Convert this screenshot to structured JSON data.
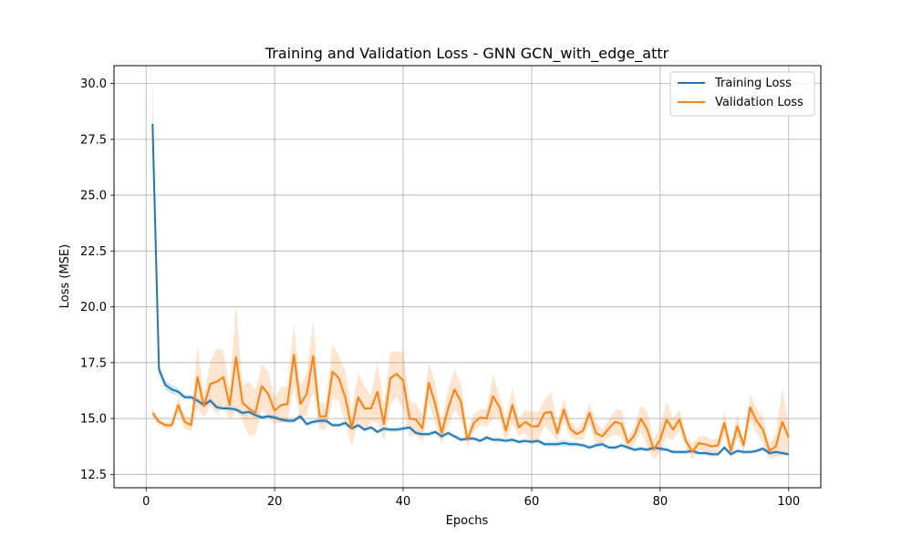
{
  "chart_data": {
    "type": "line",
    "title": "Training and Validation Loss - GNN GCN_with_edge_attr",
    "xlabel": "Epochs",
    "ylabel": "Loss (MSE)",
    "xlim": [
      -5,
      105
    ],
    "ylim": [
      11.9,
      30.8
    ],
    "xticks": [
      "0",
      "20",
      "40",
      "60",
      "80",
      "100"
    ],
    "yticks": [
      "12.5",
      "15.0",
      "17.5",
      "20.0",
      "22.5",
      "25.0",
      "27.5",
      "30.0"
    ],
    "grid": true,
    "legend_position": "top-right",
    "series": [
      {
        "name": "Training Loss",
        "color": "#1f77b4",
        "x": [
          1,
          2,
          3,
          4,
          5,
          6,
          7,
          8,
          9,
          10,
          11,
          12,
          13,
          14,
          15,
          16,
          17,
          18,
          19,
          20,
          21,
          22,
          23,
          24,
          25,
          26,
          27,
          28,
          29,
          30,
          31,
          32,
          33,
          34,
          35,
          36,
          37,
          38,
          39,
          40,
          41,
          42,
          43,
          44,
          45,
          46,
          47,
          48,
          49,
          50,
          51,
          52,
          53,
          54,
          55,
          56,
          57,
          58,
          59,
          60,
          61,
          62,
          63,
          64,
          65,
          66,
          67,
          68,
          69,
          70,
          71,
          72,
          73,
          74,
          75,
          76,
          77,
          78,
          79,
          80,
          81,
          82,
          83,
          84,
          85,
          86,
          87,
          88,
          89,
          90,
          91,
          92,
          93,
          94,
          95,
          96,
          97,
          98,
          99,
          100
        ],
        "values": [
          28.2,
          17.2,
          16.5,
          16.3,
          16.2,
          15.95,
          15.95,
          15.8,
          15.6,
          15.8,
          15.5,
          15.45,
          15.45,
          15.4,
          15.25,
          15.3,
          15.15,
          15.05,
          15.1,
          15.05,
          14.95,
          14.9,
          14.9,
          15.1,
          14.75,
          14.85,
          14.9,
          14.9,
          14.7,
          14.7,
          14.8,
          14.55,
          14.7,
          14.5,
          14.6,
          14.4,
          14.55,
          14.5,
          14.5,
          14.55,
          14.6,
          14.35,
          14.3,
          14.3,
          14.4,
          14.2,
          14.35,
          14.2,
          14.05,
          14.1,
          14.1,
          14.0,
          14.15,
          14.05,
          14.05,
          14.0,
          14.05,
          13.95,
          14.0,
          13.95,
          14.0,
          13.85,
          13.85,
          13.85,
          13.9,
          13.85,
          13.85,
          13.8,
          13.7,
          13.8,
          13.85,
          13.7,
          13.7,
          13.8,
          13.7,
          13.6,
          13.65,
          13.6,
          13.7,
          13.65,
          13.6,
          13.5,
          13.5,
          13.5,
          13.55,
          13.45,
          13.45,
          13.4,
          13.4,
          13.7,
          13.4,
          13.55,
          13.5,
          13.5,
          13.55,
          13.65,
          13.45,
          13.5,
          13.45,
          13.4
        ],
        "band": [
          2.0,
          0.3,
          0.2,
          0.2,
          0.15,
          0.12,
          0.12,
          0.12,
          0.12,
          0.12,
          0.1,
          0.1,
          0.1,
          0.1,
          0.1,
          0.1,
          0.1,
          0.1,
          0.1,
          0.1,
          0.1,
          0.1,
          0.1,
          0.12,
          0.1,
          0.1,
          0.1,
          0.1,
          0.1,
          0.1,
          0.1,
          0.1,
          0.1,
          0.1,
          0.1,
          0.1,
          0.1,
          0.1,
          0.1,
          0.1,
          0.1,
          0.1,
          0.1,
          0.1,
          0.1,
          0.1,
          0.1,
          0.1,
          0.1,
          0.1,
          0.1,
          0.1,
          0.1,
          0.1,
          0.1,
          0.1,
          0.1,
          0.1,
          0.1,
          0.1,
          0.1,
          0.1,
          0.1,
          0.12,
          0.15,
          0.12,
          0.1,
          0.1,
          0.1,
          0.1,
          0.1,
          0.1,
          0.1,
          0.1,
          0.1,
          0.1,
          0.1,
          0.1,
          0.1,
          0.1,
          0.1,
          0.1,
          0.1,
          0.1,
          0.1,
          0.1,
          0.1,
          0.1,
          0.1,
          0.1,
          0.1,
          0.1,
          0.1,
          0.1,
          0.1,
          0.1,
          0.1,
          0.1,
          0.1,
          0.1
        ]
      },
      {
        "name": "Validation Loss",
        "color": "#ff7f0e",
        "x": [
          1,
          2,
          3,
          4,
          5,
          6,
          7,
          8,
          9,
          10,
          11,
          12,
          13,
          14,
          15,
          16,
          17,
          18,
          19,
          20,
          21,
          22,
          23,
          24,
          25,
          26,
          27,
          28,
          29,
          30,
          31,
          32,
          33,
          34,
          35,
          36,
          37,
          38,
          39,
          40,
          41,
          42,
          43,
          44,
          45,
          46,
          47,
          48,
          49,
          50,
          51,
          52,
          53,
          54,
          55,
          56,
          57,
          58,
          59,
          60,
          61,
          62,
          63,
          64,
          65,
          66,
          67,
          68,
          69,
          70,
          71,
          72,
          73,
          74,
          75,
          76,
          77,
          78,
          79,
          80,
          81,
          82,
          83,
          84,
          85,
          86,
          87,
          88,
          89,
          90,
          91,
          92,
          93,
          94,
          95,
          96,
          97,
          98,
          99,
          100
        ],
        "values": [
          15.25,
          14.85,
          14.7,
          14.7,
          15.6,
          14.85,
          14.7,
          16.85,
          15.55,
          16.55,
          16.65,
          16.85,
          15.6,
          17.75,
          15.7,
          15.45,
          15.25,
          16.45,
          16.1,
          15.35,
          15.6,
          15.65,
          17.85,
          15.65,
          16.1,
          17.8,
          15.1,
          15.1,
          17.1,
          16.8,
          15.95,
          14.55,
          15.95,
          15.45,
          15.45,
          16.2,
          14.75,
          16.8,
          17.0,
          16.7,
          15.0,
          14.95,
          14.55,
          16.6,
          15.65,
          14.35,
          15.45,
          16.3,
          15.75,
          14.05,
          14.8,
          15.05,
          15.0,
          16.0,
          15.5,
          14.45,
          15.6,
          14.6,
          14.85,
          14.65,
          14.65,
          15.25,
          15.3,
          14.35,
          15.4,
          14.55,
          14.3,
          14.45,
          15.25,
          14.35,
          14.2,
          14.55,
          14.85,
          14.75,
          13.9,
          14.25,
          15.0,
          14.5,
          13.6,
          14.05,
          14.95,
          14.5,
          14.95,
          14.0,
          13.5,
          13.9,
          13.85,
          13.75,
          13.8,
          14.8,
          13.55,
          14.65,
          13.8,
          15.5,
          14.9,
          14.5,
          13.55,
          13.75,
          14.85,
          14.15
        ],
        "band": [
          0.2,
          0.15,
          0.15,
          0.15,
          0.35,
          0.3,
          0.3,
          1.4,
          0.5,
          1.0,
          1.5,
          1.2,
          0.7,
          2.4,
          0.8,
          1.2,
          1.0,
          1.0,
          1.0,
          0.6,
          0.8,
          0.8,
          1.4,
          0.8,
          0.9,
          1.6,
          0.6,
          0.6,
          1.2,
          1.0,
          1.2,
          0.8,
          1.1,
          1.0,
          0.6,
          1.4,
          0.8,
          1.2,
          1.0,
          1.3,
          0.8,
          0.7,
          0.6,
          0.9,
          0.9,
          0.5,
          0.8,
          0.9,
          0.8,
          0.35,
          0.4,
          0.35,
          0.4,
          1.0,
          0.5,
          0.5,
          0.8,
          0.4,
          0.5,
          0.7,
          0.6,
          0.6,
          0.9,
          0.4,
          0.5,
          0.4,
          0.25,
          0.4,
          0.5,
          0.5,
          0.3,
          0.4,
          0.55,
          0.6,
          0.3,
          0.4,
          0.6,
          0.8,
          0.45,
          0.6,
          0.8,
          0.5,
          0.45,
          0.3,
          0.35,
          0.3,
          0.35,
          0.3,
          0.3,
          0.55,
          0.35,
          0.5,
          0.3,
          0.6,
          0.55,
          0.6,
          0.35,
          0.5,
          1.5,
          0.6
        ]
      }
    ]
  }
}
